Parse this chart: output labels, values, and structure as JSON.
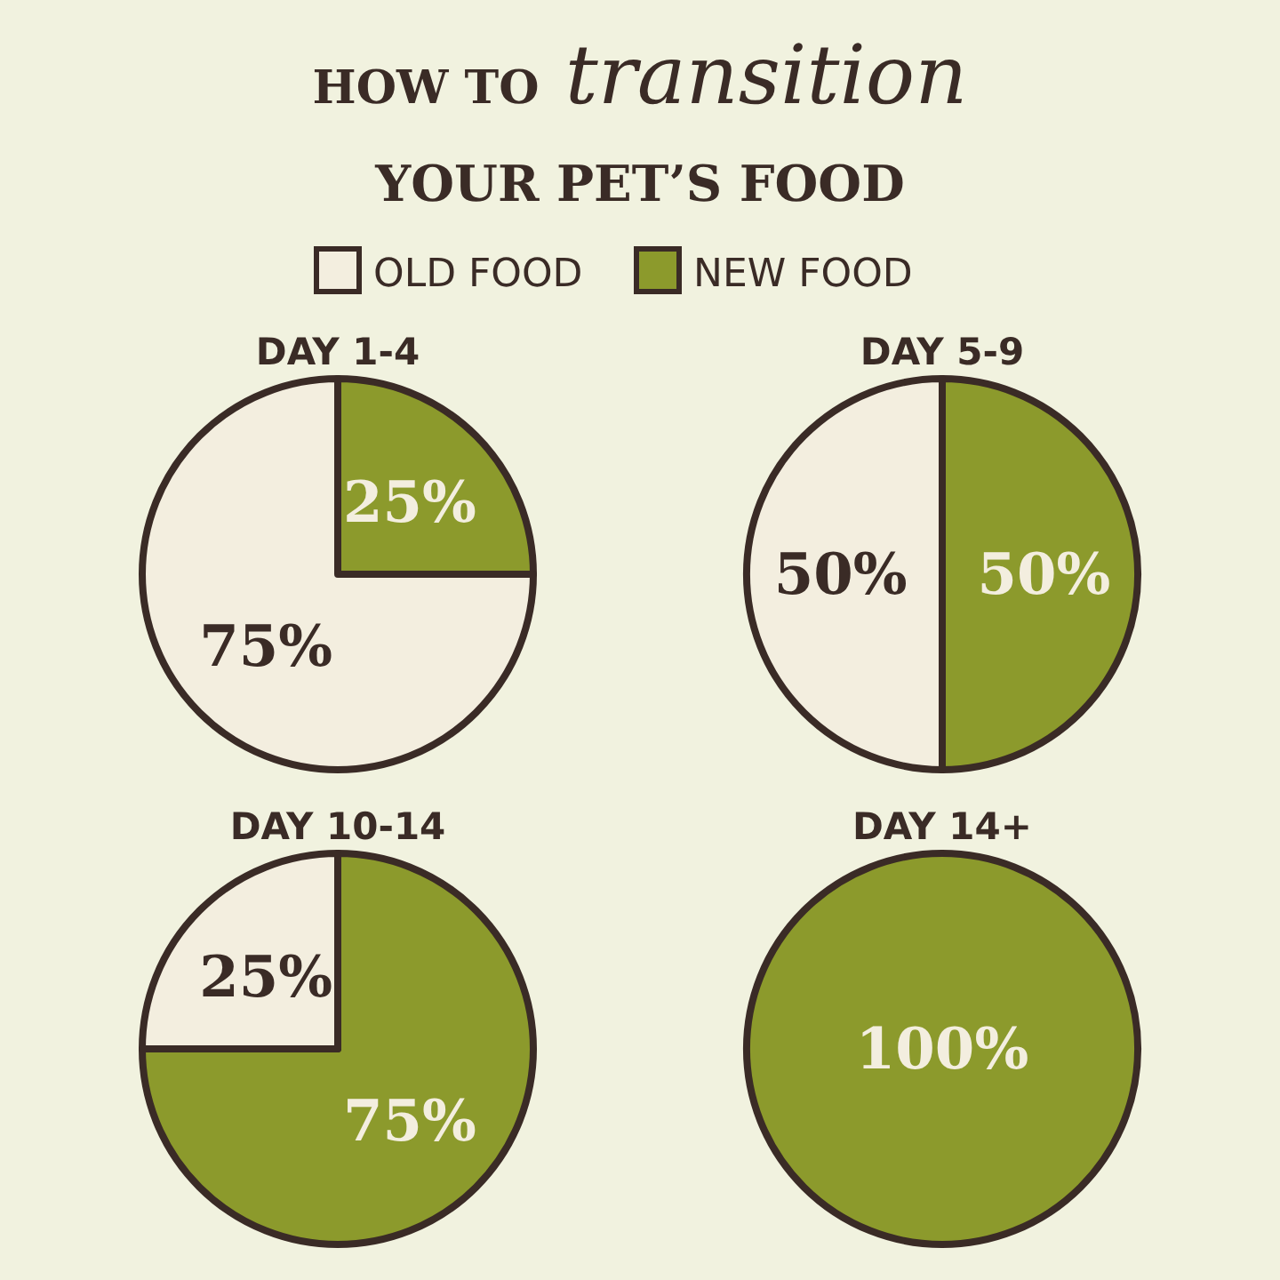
{
  "chart_data": [
    {
      "type": "other",
      "title": "HOW TO transition YOUR PET’S FOOD"
    },
    {
      "type": "pie",
      "title": "DAY 1-4",
      "categories": [
        "OLD FOOD",
        "NEW FOOD"
      ],
      "values": [
        75,
        25
      ],
      "value_labels": [
        "75%",
        "25%"
      ],
      "colors": [
        "#f3eedf",
        "#8c9a2c"
      ],
      "legend": "top"
    },
    {
      "type": "pie",
      "title": "DAY 5-9",
      "categories": [
        null,
        null
      ],
      "values": [
        50,
        50
      ],
      "value_labels": [
        "50%",
        "50%"
      ],
      "colors": [
        "#f3eedf",
        "#8c9a2c"
      ]
    },
    {
      "type": "pie",
      "title": "DAY 10-14",
      "categories": [
        null,
        null
      ],
      "values": [
        25,
        75
      ],
      "value_labels": [
        "25%",
        "75%"
      ],
      "colors": [
        "#f3eedf",
        "#8c9a2c"
      ]
    },
    {
      "type": "pie",
      "title": "DAY 14+",
      "categories": [
        null
      ],
      "values": [
        100
      ],
      "value_labels": [
        "100%"
      ],
      "colors": [
        "#8c9a2c"
      ]
    }
  ]
}
